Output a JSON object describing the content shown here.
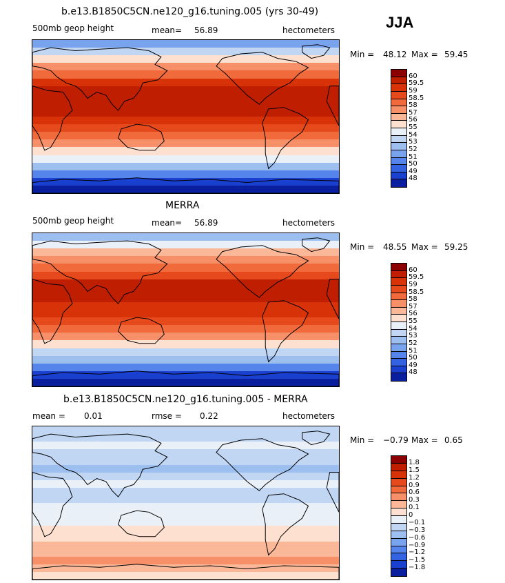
{
  "season": "JJA",
  "chart_data": [
    {
      "type": "heatmap",
      "title": "b.e13.B1850C5CN.ne120_g16.tuning.005 (yrs 30-49)",
      "variable": "500mb geop height",
      "stat_label": "mean=",
      "stat_value": "56.89",
      "units": "hectometers",
      "min_label": "Min =",
      "min_value": "48.12",
      "max_label": "Max =",
      "max_value": "59.45",
      "levels": [
        "60",
        "59.5",
        "59",
        "58.5",
        "58",
        "57",
        "56",
        "55",
        "54",
        "53",
        "52",
        "51",
        "50",
        "49",
        "48"
      ],
      "colors": [
        "#8b0000",
        "#c01e00",
        "#d73208",
        "#e64a1c",
        "#f06a3c",
        "#f79068",
        "#fbb898",
        "#fde0cf",
        "#eaf0f8",
        "#c0d6f3",
        "#9dbff0",
        "#7aa3ee",
        "#5584ea",
        "#3463e2",
        "#1a40d0",
        "#0a1f9e"
      ],
      "zonal_bands": [
        4,
        6,
        8,
        10,
        11,
        13,
        14,
        14,
        14,
        14,
        13,
        12,
        11,
        10,
        8,
        7,
        5,
        3,
        1,
        0
      ]
    },
    {
      "type": "heatmap",
      "title": "MERRA",
      "variable": "500mb geop height",
      "stat_label": "mean=",
      "stat_value": "56.89",
      "units": "hectometers",
      "min_label": "Min =",
      "min_value": "48.55",
      "max_label": "Max =",
      "max_value": "59.25",
      "levels": [
        "60",
        "59.5",
        "59",
        "58.5",
        "58",
        "57",
        "56",
        "55",
        "54",
        "53",
        "52",
        "51",
        "50",
        "49",
        "48"
      ],
      "colors": [
        "#8b0000",
        "#c01e00",
        "#d73208",
        "#e64a1c",
        "#f06a3c",
        "#f79068",
        "#fbb898",
        "#fde0cf",
        "#eaf0f8",
        "#c0d6f3",
        "#9dbff0",
        "#7aa3ee",
        "#5584ea",
        "#3463e2",
        "#1a40d0",
        "#0a1f9e"
      ],
      "zonal_bands": [
        5,
        7,
        9,
        10,
        11,
        12,
        14,
        14,
        14,
        13,
        13,
        12,
        11,
        10,
        8,
        6,
        5,
        3,
        1,
        0
      ]
    },
    {
      "type": "heatmap",
      "title": "b.e13.B1850C5CN.ne120_g16.tuning.005 - MERRA",
      "stat_label": "mean =",
      "stat_value": "0.01",
      "stat2_label": "rmse =",
      "stat2_value": "0.22",
      "units": "hectometers",
      "min_label": "Min =",
      "min_value": "−0.79",
      "max_label": "Max =",
      "max_value": "0.65",
      "levels": [
        "1.8",
        "1.5",
        "1.2",
        "0.9",
        "0.6",
        "0.3",
        "0.1",
        "0",
        "−0.1",
        "−0.3",
        "−0.6",
        "−0.9",
        "−1.2",
        "−1.5",
        "−1.8"
      ],
      "colors": [
        "#8b0000",
        "#c01e00",
        "#d73208",
        "#e64a1c",
        "#f06a3c",
        "#f79068",
        "#fbb898",
        "#fde0cf",
        "#eaf0f8",
        "#c0d6f3",
        "#9dbff0",
        "#7aa3ee",
        "#5584ea",
        "#3463e2",
        "#1a40d0",
        "#0a1f9e"
      ],
      "zonal_bands": [
        6,
        6,
        7,
        6,
        6,
        5,
        6,
        7,
        6,
        6,
        7,
        7,
        7,
        8,
        8,
        9,
        9,
        10,
        9,
        8
      ]
    }
  ]
}
